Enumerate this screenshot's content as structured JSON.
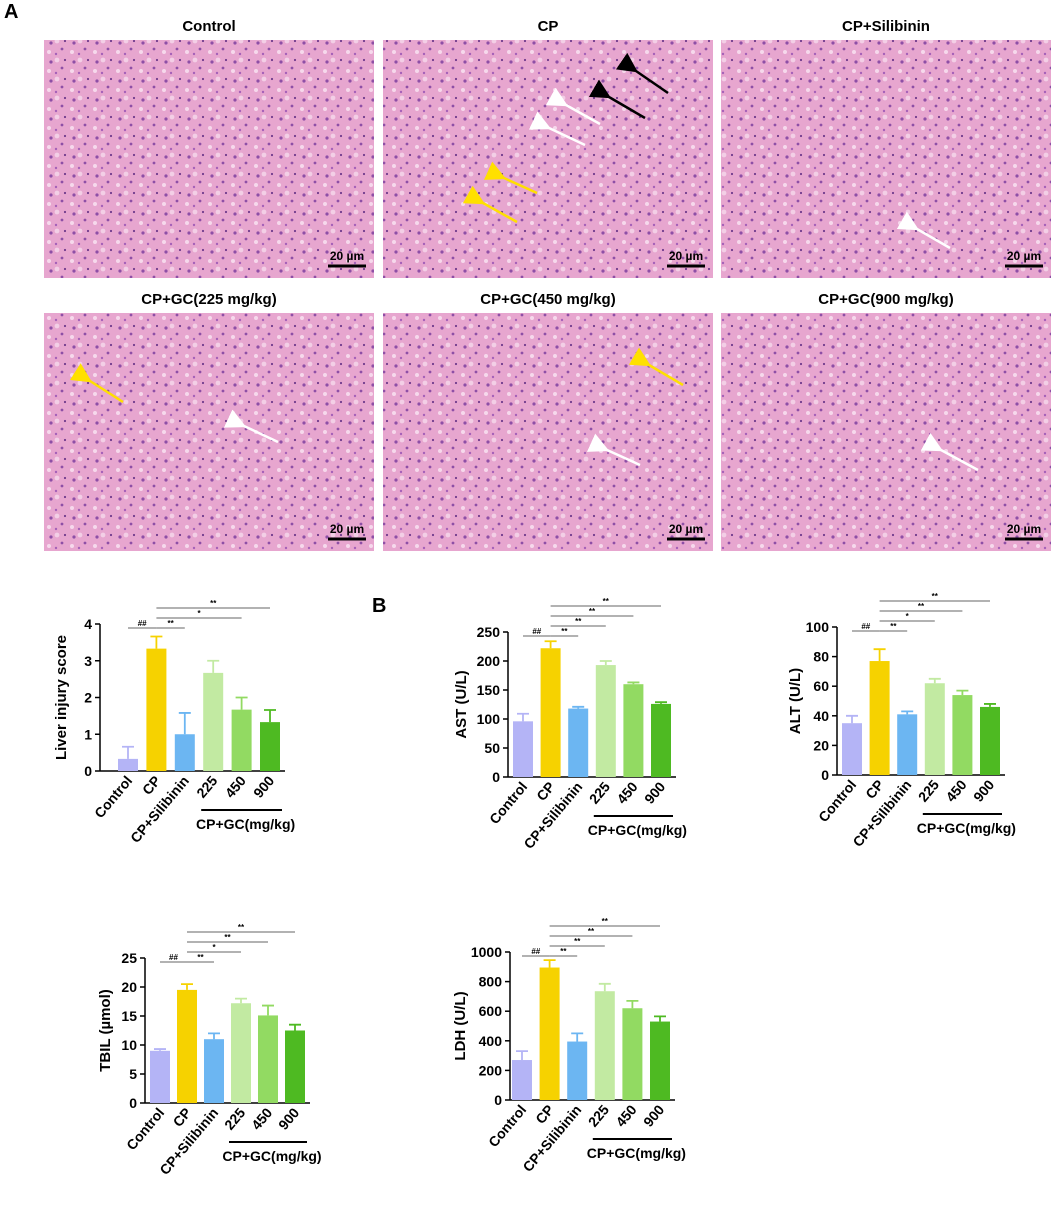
{
  "panels": {
    "a": "A",
    "b": "B"
  },
  "images": [
    {
      "title": "Control",
      "scale_bar": "20 µm"
    },
    {
      "title": "CP",
      "scale_bar": "20 µm"
    },
    {
      "title": "CP+Silibinin",
      "scale_bar": "20 µm"
    },
    {
      "title": "CP+GC(225 mg/kg)",
      "scale_bar": "20 µm"
    },
    {
      "title": "CP+GC(450 mg/kg)",
      "scale_bar": "20 µm"
    },
    {
      "title": "CP+GC(900 mg/kg)",
      "scale_bar": "20 µm"
    }
  ],
  "chart_data": [
    {
      "type": "bar",
      "ylabel": "Liver injury score",
      "categories": [
        "Control",
        "CP",
        "CP+Silibinin",
        "225",
        "450",
        "900"
      ],
      "group_label": "CP+GC(mg/kg)",
      "values": [
        0.33,
        3.33,
        1.0,
        2.67,
        1.67,
        1.33
      ],
      "errors": [
        0.33,
        0.33,
        0.58,
        0.33,
        0.33,
        0.33
      ],
      "colors": [
        "#b4b4f6",
        "#f6d200",
        "#6cb6f2",
        "#c2eaa2",
        "#92da62",
        "#4eba22"
      ],
      "ylim": [
        0,
        4
      ],
      "yticks": [
        0,
        1,
        2,
        3,
        4
      ],
      "annotations": [
        {
          "from": 0,
          "to": 1,
          "label": "##"
        },
        {
          "from": 1,
          "to": 2,
          "label": "**"
        },
        {
          "from": 1,
          "to": 4,
          "label": "*"
        },
        {
          "from": 1,
          "to": 5,
          "label": "**"
        }
      ]
    },
    {
      "type": "bar",
      "ylabel": "AST  (U/L)",
      "categories": [
        "Control",
        "CP",
        "CP+Silibinin",
        "225",
        "450",
        "900"
      ],
      "group_label": "CP+GC(mg/kg)",
      "values": [
        96,
        222,
        118,
        193,
        160,
        126
      ],
      "errors": [
        13,
        12,
        3,
        7,
        3,
        3
      ],
      "colors": [
        "#b4b4f6",
        "#f6d200",
        "#6cb6f2",
        "#c2eaa2",
        "#92da62",
        "#4eba22"
      ],
      "ylim": [
        0,
        250
      ],
      "yticks": [
        0,
        50,
        100,
        150,
        200,
        250
      ],
      "annotations": [
        {
          "from": 0,
          "to": 1,
          "label": "##"
        },
        {
          "from": 1,
          "to": 2,
          "label": "**"
        },
        {
          "from": 1,
          "to": 3,
          "label": "**"
        },
        {
          "from": 1,
          "to": 4,
          "label": "**"
        },
        {
          "from": 1,
          "to": 5,
          "label": "**"
        }
      ]
    },
    {
      "type": "bar",
      "ylabel": "ALT (U/L)",
      "categories": [
        "Control",
        "CP",
        "CP+Silibinin",
        "225",
        "450",
        "900"
      ],
      "group_label": "CP+GC(mg/kg)",
      "values": [
        35,
        77,
        41,
        62,
        54,
        46
      ],
      "errors": [
        5,
        8,
        2,
        3,
        3,
        2
      ],
      "colors": [
        "#b4b4f6",
        "#f6d200",
        "#6cb6f2",
        "#c2eaa2",
        "#92da62",
        "#4eba22"
      ],
      "ylim": [
        0,
        100
      ],
      "yticks": [
        0,
        20,
        40,
        60,
        80,
        100
      ],
      "annotations": [
        {
          "from": 0,
          "to": 1,
          "label": "##"
        },
        {
          "from": 1,
          "to": 2,
          "label": "**"
        },
        {
          "from": 1,
          "to": 3,
          "label": "*"
        },
        {
          "from": 1,
          "to": 4,
          "label": "**"
        },
        {
          "from": 1,
          "to": 5,
          "label": "**"
        }
      ]
    },
    {
      "type": "bar",
      "ylabel": "TBIL (µmol)",
      "categories": [
        "Control",
        "CP",
        "CP+Silibinin",
        "225",
        "450",
        "900"
      ],
      "group_label": "CP+GC(mg/kg)",
      "values": [
        9,
        19.5,
        11,
        17.2,
        15.1,
        12.5
      ],
      "errors": [
        0.3,
        1,
        1,
        0.8,
        1.7,
        1
      ],
      "colors": [
        "#b4b4f6",
        "#f6d200",
        "#6cb6f2",
        "#c2eaa2",
        "#92da62",
        "#4eba22"
      ],
      "ylim": [
        0,
        25
      ],
      "yticks": [
        0,
        5,
        10,
        15,
        20,
        25
      ],
      "annotations": [
        {
          "from": 0,
          "to": 1,
          "label": "##"
        },
        {
          "from": 1,
          "to": 2,
          "label": "**"
        },
        {
          "from": 1,
          "to": 3,
          "label": "*"
        },
        {
          "from": 1,
          "to": 4,
          "label": "**"
        },
        {
          "from": 1,
          "to": 5,
          "label": "**"
        }
      ]
    },
    {
      "type": "bar",
      "ylabel": "LDH (U/L)",
      "categories": [
        "Control",
        "CP",
        "CP+Silibinin",
        "225",
        "450",
        "900"
      ],
      "group_label": "CP+GC(mg/kg)",
      "values": [
        270,
        895,
        395,
        735,
        620,
        530
      ],
      "errors": [
        60,
        50,
        55,
        50,
        50,
        35
      ],
      "colors": [
        "#b4b4f6",
        "#f6d200",
        "#6cb6f2",
        "#c2eaa2",
        "#92da62",
        "#4eba22"
      ],
      "ylim": [
        0,
        1000
      ],
      "yticks": [
        0,
        200,
        400,
        600,
        800,
        1000
      ],
      "annotations": [
        {
          "from": 0,
          "to": 1,
          "label": "##"
        },
        {
          "from": 1,
          "to": 2,
          "label": "**"
        },
        {
          "from": 1,
          "to": 3,
          "label": "**"
        },
        {
          "from": 1,
          "to": 4,
          "label": "**"
        },
        {
          "from": 1,
          "to": 5,
          "label": "**"
        }
      ]
    }
  ]
}
